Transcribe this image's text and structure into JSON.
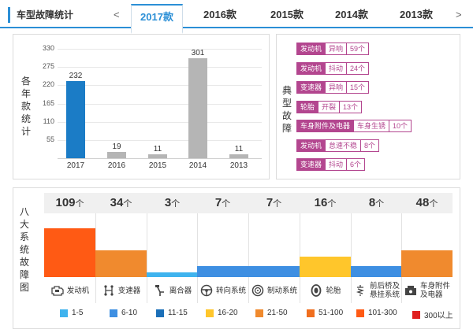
{
  "header": {
    "title": "车型故障统计",
    "prev": "<",
    "next": ">",
    "tabs": [
      {
        "label": "2017款"
      },
      {
        "label": "2016款"
      },
      {
        "label": "2015款"
      },
      {
        "label": "2014款"
      },
      {
        "label": "2013款"
      }
    ]
  },
  "yearly": {
    "side_label": [
      "各",
      "年",
      "款",
      "统",
      "计"
    ]
  },
  "chart_data": {
    "type": "bar",
    "categories": [
      "2017",
      "2016",
      "2015",
      "2014",
      "2013"
    ],
    "values": [
      232,
      19,
      11,
      301,
      11
    ],
    "ylim": [
      0,
      330
    ],
    "yticks": [
      55,
      110,
      165,
      220,
      275,
      330
    ],
    "colors": [
      "#1b7cc6",
      "#b5b5b5",
      "#b5b5b5",
      "#b5b5b5",
      "#b5b5b5"
    ],
    "grid": true
  },
  "faults": {
    "side_label": [
      "典",
      "型",
      "故",
      "障"
    ],
    "items": [
      {
        "component": "发动机",
        "symptom": "异响",
        "count": "59个"
      },
      {
        "component": "发动机",
        "symptom": "抖动",
        "count": "24个"
      },
      {
        "component": "变速器",
        "symptom": "异响",
        "count": "15个"
      },
      {
        "component": "轮胎",
        "symptom": "开裂",
        "count": "13个"
      },
      {
        "component": "车身附件及电器",
        "symptom": "车身生锈",
        "count": "10个"
      },
      {
        "component": "发动机",
        "symptom": "怠速不稳",
        "count": "8个"
      },
      {
        "component": "变速器",
        "symptom": "抖动",
        "count": "6个"
      }
    ],
    "accent_color": "#b3468f"
  },
  "systems": {
    "side_label": [
      "八",
      "大",
      "系",
      "统",
      "故",
      "障",
      "图"
    ],
    "unit": "个",
    "items": [
      {
        "count": "109",
        "name": "发动机",
        "icon": "engine-icon",
        "level": 0.77,
        "color": "#ff5a14"
      },
      {
        "count": "34",
        "name": "变速器",
        "icon": "gearshift-icon",
        "level": 0.42,
        "color": "#f08a2e"
      },
      {
        "count": "3",
        "name": "离合器",
        "icon": "clutch-icon",
        "level": 0.07,
        "color": "#3fb3ee"
      },
      {
        "count": "7",
        "name": "转向系统",
        "icon": "steering-wheel-icon",
        "level": 0.17,
        "color": "#3e8fe2"
      },
      {
        "count": "7",
        "name": "制动系统",
        "icon": "brake-disc-icon",
        "level": 0.17,
        "color": "#3e8fe2"
      },
      {
        "count": "16",
        "name": "轮胎",
        "icon": "tire-icon",
        "level": 0.32,
        "color": "#ffc62b"
      },
      {
        "count": "8",
        "name": "前后桥及悬挂系统",
        "name_lines": [
          "前后桥及",
          "悬挂系统"
        ],
        "icon": "suspension-icon",
        "level": 0.17,
        "color": "#3e8fe2"
      },
      {
        "count": "48",
        "name": "车身附件及电器",
        "name_lines": [
          "车身附件",
          "及电器"
        ],
        "icon": "car-body-icon",
        "level": 0.42,
        "color": "#f08a2e"
      }
    ]
  },
  "legend": [
    {
      "label": "1-5",
      "color": "#3fb3ee"
    },
    {
      "label": "6-10",
      "color": "#3e8fe2"
    },
    {
      "label": "11-15",
      "color": "#1b6fb8"
    },
    {
      "label": "16-20",
      "color": "#ffc62b"
    },
    {
      "label": "21-50",
      "color": "#f08a2e"
    },
    {
      "label": "51-100",
      "color": "#f06e1e"
    },
    {
      "label": "101-300",
      "color": "#ff5a14"
    },
    {
      "label": "300以上",
      "color": "#e02020"
    }
  ]
}
